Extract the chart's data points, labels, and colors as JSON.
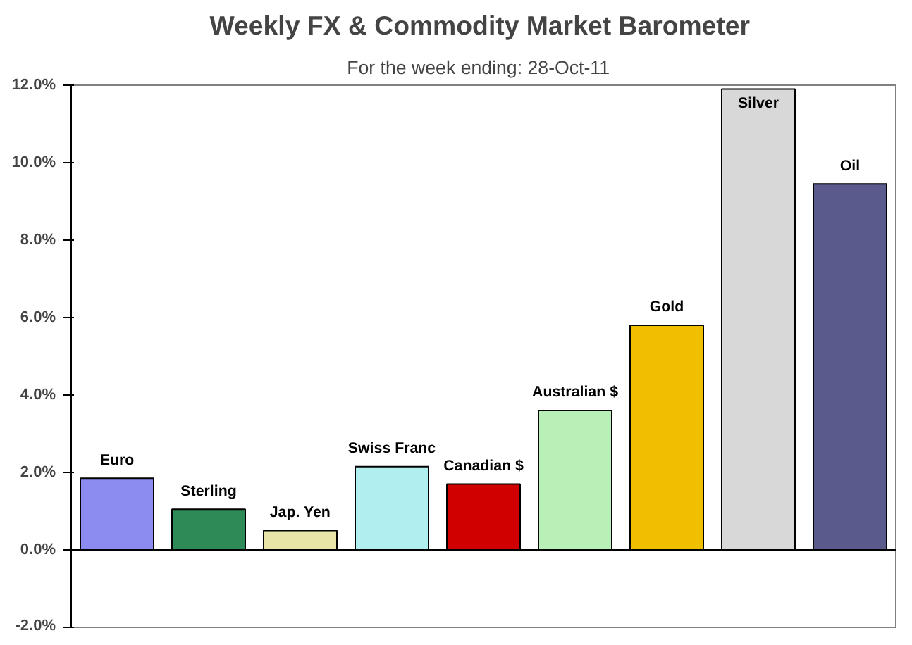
{
  "chart_data": {
    "type": "bar",
    "title": "Weekly FX & Commodity  Market Barometer",
    "subtitle": "For the week ending:   28-Oct-11",
    "categories": [
      "Euro",
      "Sterling",
      "Jap. Yen",
      "Swiss Franc",
      "Canadian $",
      "Australian $",
      "Gold",
      "Silver",
      "Oil"
    ],
    "values": [
      1.85,
      1.05,
      0.5,
      2.15,
      1.7,
      3.6,
      5.8,
      11.9,
      9.45
    ],
    "colors": [
      "#8c8cf0",
      "#2e8b57",
      "#e8e4a8",
      "#b0eef0",
      "#d00000",
      "#b8f0b8",
      "#f0c000",
      "#d8d8d8",
      "#5a5a8c"
    ],
    "ylim": [
      -2,
      12
    ],
    "yticks": [
      {
        "value": -2,
        "label": "-2.0%"
      },
      {
        "value": 0,
        "label": "0.0%"
      },
      {
        "value": 2,
        "label": "2.0%"
      },
      {
        "value": 4,
        "label": "4.0%"
      },
      {
        "value": 6,
        "label": "6.0%"
      },
      {
        "value": 8,
        "label": "8.0%"
      },
      {
        "value": 10,
        "label": "10.0%"
      },
      {
        "value": 12,
        "label": "12.0%"
      }
    ],
    "tick_labels": "y"
  }
}
